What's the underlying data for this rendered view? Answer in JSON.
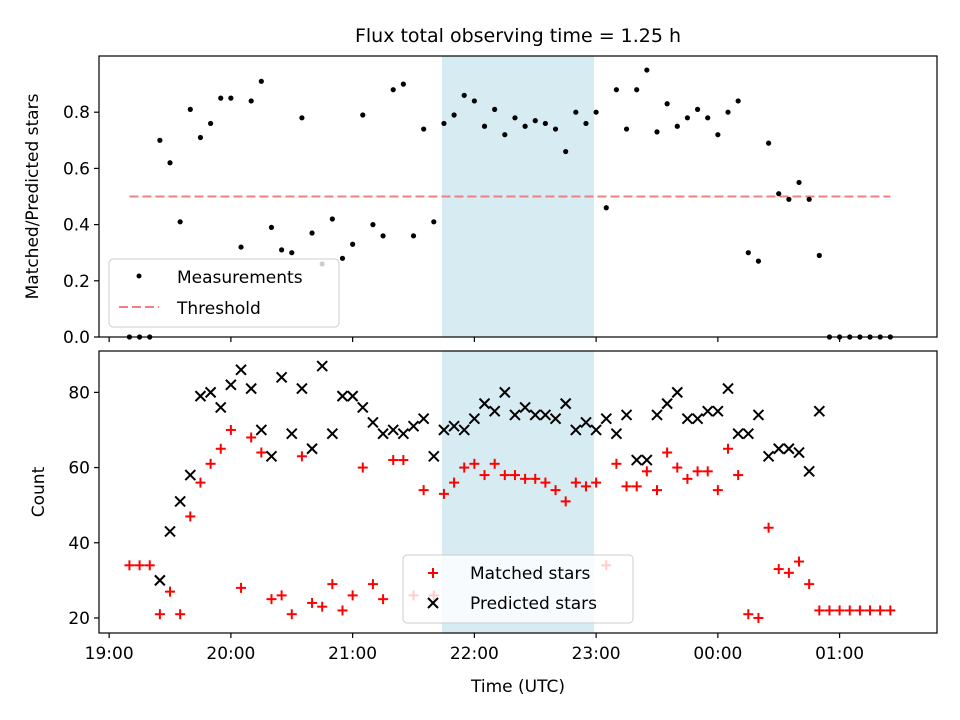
{
  "title": "Flux total observing time = 1.25 h",
  "colors": {
    "measurement": "#000000",
    "threshold": "#f08080",
    "highlight": "#add8e6",
    "matched": "#ff0000",
    "predicted": "#000000"
  },
  "chart_data": [
    {
      "type": "scatter",
      "panel": "top",
      "ylabel": "Matched/Predicted stars",
      "ylim": [
        0,
        1.0
      ],
      "yticks": [
        0.0,
        0.2,
        0.4,
        0.6,
        0.8
      ],
      "ytick_labels": [
        "0.0",
        "0.2",
        "0.4",
        "0.6",
        "0.8"
      ],
      "xlim": [
        "18:55",
        "01:48"
      ],
      "highlight_span": [
        "21:44",
        "22:59"
      ],
      "legend": {
        "placement": "lower-left",
        "entries": [
          "Measurements",
          "Threshold"
        ]
      },
      "threshold": {
        "name": "Threshold",
        "y": 0.5,
        "x_range": [
          "19:10",
          "01:25"
        ]
      },
      "series": [
        {
          "name": "Measurements",
          "x": [
            "19:10",
            "19:15",
            "19:20",
            "19:25",
            "19:30",
            "19:35",
            "19:40",
            "19:45",
            "19:50",
            "19:55",
            "20:00",
            "20:05",
            "20:10",
            "20:15",
            "20:20",
            "20:25",
            "20:30",
            "20:35",
            "20:40",
            "20:45",
            "20:50",
            "20:55",
            "21:00",
            "21:05",
            "21:10",
            "21:15",
            "21:20",
            "21:25",
            "21:30",
            "21:35",
            "21:40",
            "21:45",
            "21:50",
            "21:55",
            "22:00",
            "22:05",
            "22:10",
            "22:15",
            "22:20",
            "22:25",
            "22:30",
            "22:35",
            "22:40",
            "22:45",
            "22:50",
            "22:55",
            "23:00",
            "23:05",
            "23:10",
            "23:15",
            "23:20",
            "23:25",
            "23:30",
            "23:35",
            "23:40",
            "23:45",
            "23:50",
            "23:55",
            "00:00",
            "00:05",
            "00:10",
            "00:15",
            "00:20",
            "00:25",
            "00:30",
            "00:35",
            "00:40",
            "00:45",
            "00:50",
            "00:55",
            "01:00",
            "01:05",
            "01:10",
            "01:15",
            "01:20",
            "01:25"
          ],
          "y": [
            0.0,
            0.0,
            0.0,
            0.7,
            0.62,
            0.41,
            0.81,
            0.71,
            0.76,
            0.85,
            0.85,
            0.32,
            0.84,
            0.91,
            0.39,
            0.31,
            0.3,
            0.78,
            0.37,
            0.26,
            0.42,
            0.28,
            0.33,
            0.79,
            0.4,
            0.36,
            0.88,
            0.9,
            0.36,
            0.74,
            0.41,
            0.76,
            0.79,
            0.86,
            0.84,
            0.75,
            0.81,
            0.72,
            0.78,
            0.75,
            0.77,
            0.76,
            0.74,
            0.66,
            0.8,
            0.76,
            0.8,
            0.46,
            0.88,
            0.74,
            0.88,
            0.95,
            0.73,
            0.83,
            0.75,
            0.78,
            0.81,
            0.78,
            0.72,
            0.8,
            0.84,
            0.3,
            0.27,
            0.69,
            0.51,
            0.49,
            0.55,
            0.49,
            0.29,
            0.0,
            0.0,
            0.0,
            0.0,
            0.0,
            0.0,
            0.0
          ]
        }
      ]
    },
    {
      "type": "scatter",
      "panel": "bottom",
      "xlabel": "Time (UTC)",
      "ylabel": "Count",
      "ylim": [
        16,
        91
      ],
      "yticks": [
        20,
        40,
        60,
        80
      ],
      "ytick_labels": [
        "20",
        "40",
        "60",
        "80"
      ],
      "xlim": [
        "18:55",
        "01:48"
      ],
      "xtick_labels": [
        "19:00",
        "20:00",
        "21:00",
        "22:00",
        "23:00",
        "00:00",
        "01:00"
      ],
      "highlight_span": [
        "21:44",
        "22:59"
      ],
      "legend": {
        "placement": "lower-center",
        "entries": [
          "Matched stars",
          "Predicted stars"
        ]
      },
      "series": [
        {
          "name": "Matched stars",
          "marker": "plus",
          "x": [
            "19:10",
            "19:15",
            "19:20",
            "19:25",
            "19:30",
            "19:35",
            "19:40",
            "19:45",
            "19:50",
            "19:55",
            "20:00",
            "20:05",
            "20:10",
            "20:15",
            "20:20",
            "20:25",
            "20:30",
            "20:35",
            "20:40",
            "20:45",
            "20:50",
            "20:55",
            "21:00",
            "21:05",
            "21:10",
            "21:15",
            "21:20",
            "21:25",
            "21:30",
            "21:35",
            "21:40",
            "21:45",
            "21:50",
            "21:55",
            "22:00",
            "22:05",
            "22:10",
            "22:15",
            "22:20",
            "22:25",
            "22:30",
            "22:35",
            "22:40",
            "22:45",
            "22:50",
            "22:55",
            "23:00",
            "23:05",
            "23:10",
            "23:15",
            "23:20",
            "23:25",
            "23:30",
            "23:35",
            "23:40",
            "23:45",
            "23:50",
            "23:55",
            "00:00",
            "00:05",
            "00:10",
            "00:15",
            "00:20",
            "00:25",
            "00:30",
            "00:35",
            "00:40",
            "00:45",
            "00:50",
            "00:55",
            "01:00",
            "01:05",
            "01:10",
            "01:15",
            "01:20",
            "01:25"
          ],
          "y": [
            34,
            34,
            34,
            21,
            27,
            21,
            47,
            56,
            61,
            65,
            70,
            28,
            68,
            64,
            25,
            26,
            21,
            63,
            24,
            23,
            29,
            22,
            26,
            60,
            29,
            25,
            62,
            62,
            26,
            54,
            26,
            53,
            56,
            60,
            61,
            58,
            61,
            58,
            58,
            57,
            57,
            56,
            54,
            51,
            56,
            55,
            56,
            34,
            61,
            55,
            55,
            59,
            54,
            64,
            60,
            57,
            59,
            59,
            54,
            65,
            58,
            21,
            20,
            44,
            33,
            32,
            35,
            29,
            22,
            22,
            22,
            22,
            22,
            22,
            22,
            22
          ]
        },
        {
          "name": "Predicted stars",
          "marker": "x",
          "x": [
            "19:25",
            "19:30",
            "19:35",
            "19:40",
            "19:45",
            "19:50",
            "19:55",
            "20:00",
            "20:05",
            "20:10",
            "20:15",
            "20:20",
            "20:25",
            "20:30",
            "20:35",
            "20:40",
            "20:45",
            "20:50",
            "20:55",
            "21:00",
            "21:05",
            "21:10",
            "21:15",
            "21:20",
            "21:25",
            "21:30",
            "21:35",
            "21:40",
            "21:45",
            "21:50",
            "21:55",
            "22:00",
            "22:05",
            "22:10",
            "22:15",
            "22:20",
            "22:25",
            "22:30",
            "22:35",
            "22:40",
            "22:45",
            "22:50",
            "22:55",
            "23:00",
            "23:05",
            "23:10",
            "23:15",
            "23:20",
            "23:25",
            "23:30",
            "23:35",
            "23:40",
            "23:45",
            "23:50",
            "23:55",
            "00:00",
            "00:05",
            "00:10",
            "00:15",
            "00:20",
            "00:25",
            "00:30",
            "00:35",
            "00:40",
            "00:45",
            "00:50"
          ],
          "y": [
            30,
            43,
            51,
            58,
            79,
            80,
            76,
            82,
            86,
            81,
            70,
            63,
            84,
            69,
            81,
            65,
            87,
            69,
            79,
            79,
            76,
            72,
            69,
            70,
            69,
            71,
            73,
            63,
            70,
            71,
            70,
            73,
            77,
            75,
            80,
            74,
            76,
            74,
            74,
            73,
            77,
            70,
            72,
            70,
            73,
            69,
            74,
            62,
            62,
            74,
            77,
            80,
            73,
            73,
            75,
            75,
            81,
            69,
            69,
            74,
            63,
            65,
            65,
            64,
            59,
            75
          ]
        }
      ]
    }
  ]
}
